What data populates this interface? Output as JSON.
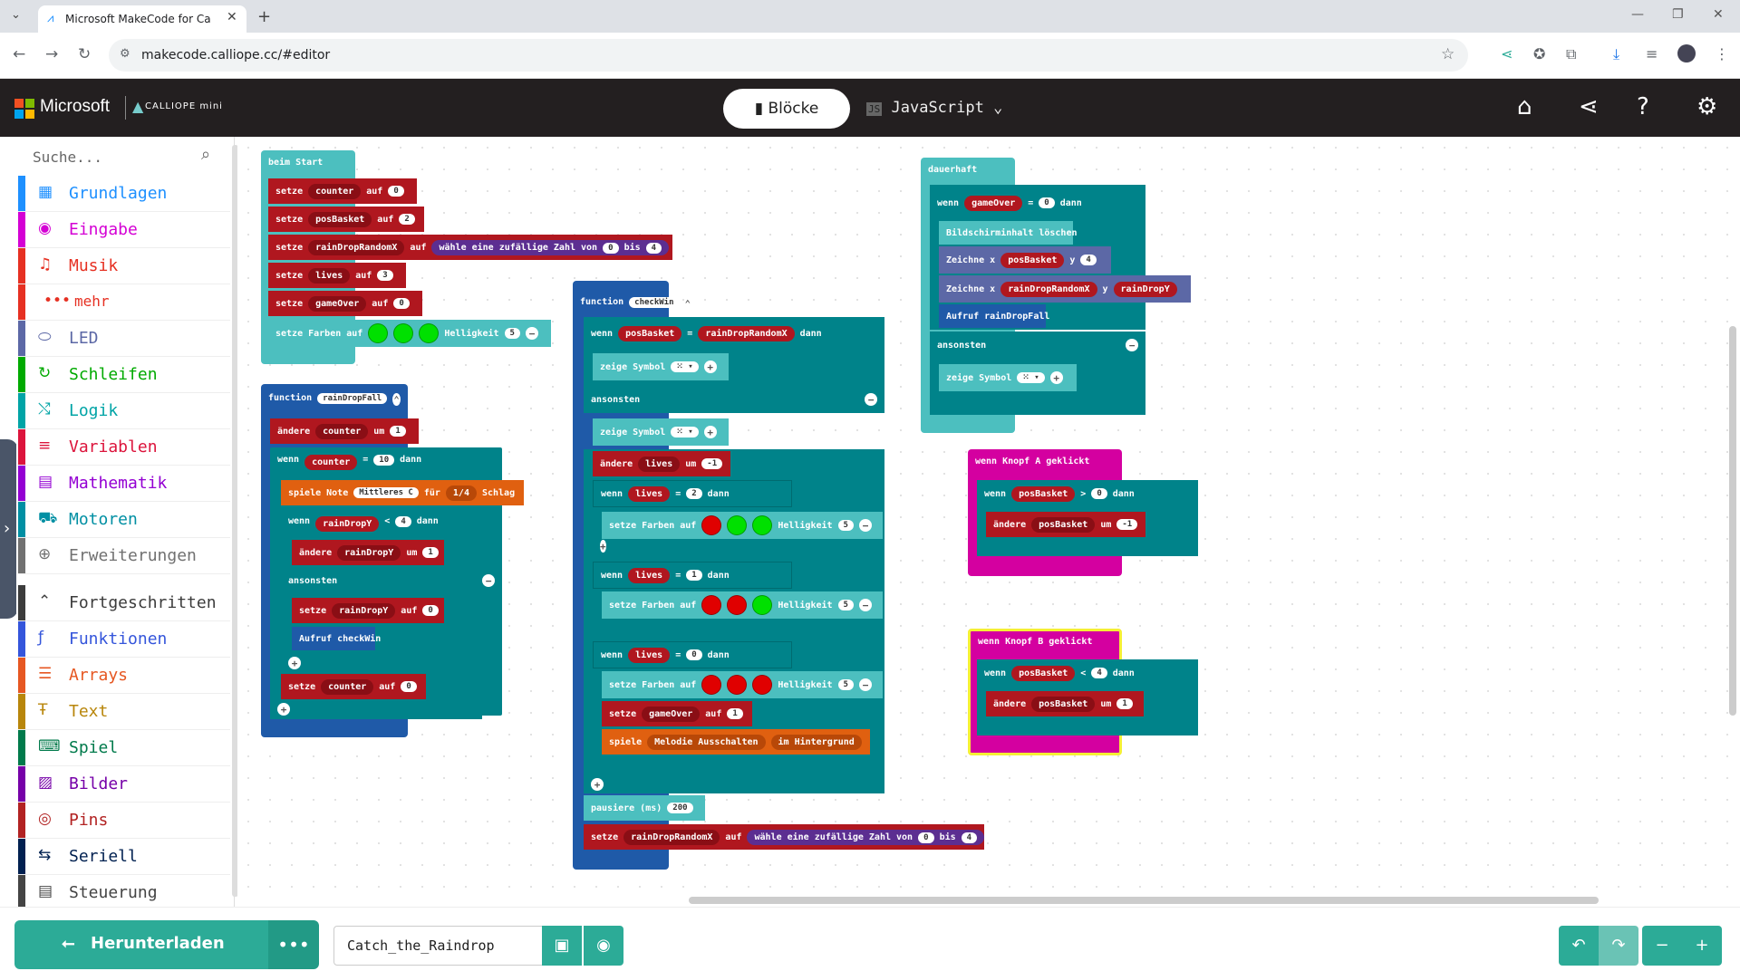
{
  "browser": {
    "tab_title": "Microsoft MakeCode for Ca",
    "url": "makecode.calliope.cc/#editor"
  },
  "header": {
    "brand": "Microsoft",
    "product": "CALLIOPE mini",
    "blocks_label": "Blöcke",
    "js_label": "JavaScript"
  },
  "toolbox": {
    "search_placeholder": "Suche...",
    "categories": [
      {
        "label": "Grundlagen",
        "color": "#1e90ff"
      },
      {
        "label": "Eingabe",
        "color": "#d400d4"
      },
      {
        "label": "Musik",
        "color": "#e63022"
      },
      {
        "label": "mehr",
        "color": "#e63022"
      },
      {
        "label": "LED",
        "color": "#5c68a6"
      },
      {
        "label": "Schleifen",
        "color": "#00aa00"
      },
      {
        "label": "Logik",
        "color": "#00a4a6"
      },
      {
        "label": "Variablen",
        "color": "#dc143c"
      },
      {
        "label": "Mathematik",
        "color": "#9400d3"
      },
      {
        "label": "Motoren",
        "color": "#008fa3"
      },
      {
        "label": "Erweiterungen",
        "color": "#717171"
      },
      {
        "label": "Fortgeschritten",
        "color": "#3c3c3c"
      },
      {
        "label": "Funktionen",
        "color": "#3455db"
      },
      {
        "label": "Arrays",
        "color": "#e65722"
      },
      {
        "label": "Text",
        "color": "#b8860b"
      },
      {
        "label": "Spiel",
        "color": "#007a4b"
      },
      {
        "label": "Bilder",
        "color": "#7600a8"
      },
      {
        "label": "Pins",
        "color": "#b22222"
      },
      {
        "label": "Seriell",
        "color": "#002050"
      },
      {
        "label": "Steuerung",
        "color": "#444444"
      }
    ]
  },
  "blocks": {
    "beim_start": "beim Start",
    "setze": "setze",
    "auf": "auf",
    "counter": "counter",
    "posBasket": "posBasket",
    "rainDropRandomX": "rainDropRandomX",
    "rainDropY": "rainDropY",
    "lives": "lives",
    "gameOver": "gameOver",
    "zufall": "wähle eine zufällige Zahl von",
    "bis": "bis",
    "setze_farben": "setze Farben auf",
    "helligkeit": "Helligkeit",
    "function": "function",
    "rainDropFall": "rainDropFall",
    "checkWin": "checkWin",
    "aendere": "ändere",
    "um": "um",
    "wenn": "wenn",
    "dann": "dann",
    "ansonsten": "ansonsten",
    "spiele_note": "spiele Note",
    "mittleres_c": "Mittleres C",
    "fuer": "für",
    "viertel": "1/4",
    "schlag": "Schlag",
    "aufruf_checkwin": "Aufruf checkWin",
    "aufruf_raindropfall": "Aufruf rainDropFall",
    "zeige_symbol": "zeige Symbol",
    "spiele": "spiele",
    "melodie": "Melodie Ausschalten",
    "hintergrund": "im Hintergrund",
    "pausiere": "pausiere (ms)",
    "pause_val": "200",
    "dauerhaft": "dauerhaft",
    "bildschirm": "Bildschirminhalt löschen",
    "zeichne_x": "Zeichne x",
    "y": "y",
    "wenn_knopf_a": "wenn Knopf A",
    "wenn_knopf_b": "wenn Knopf B",
    "geklickt": "geklickt",
    "eq": "=",
    "gt": ">",
    "lt": "<",
    "n0": "0",
    "n1": "1",
    "n2": "2",
    "n3": "3",
    "n4": "4",
    "n5": "5",
    "n10": "10",
    "nm1": "-1"
  },
  "bottom": {
    "download_label": "Herunterladen",
    "project_name": "Catch_the_Raindrop"
  }
}
